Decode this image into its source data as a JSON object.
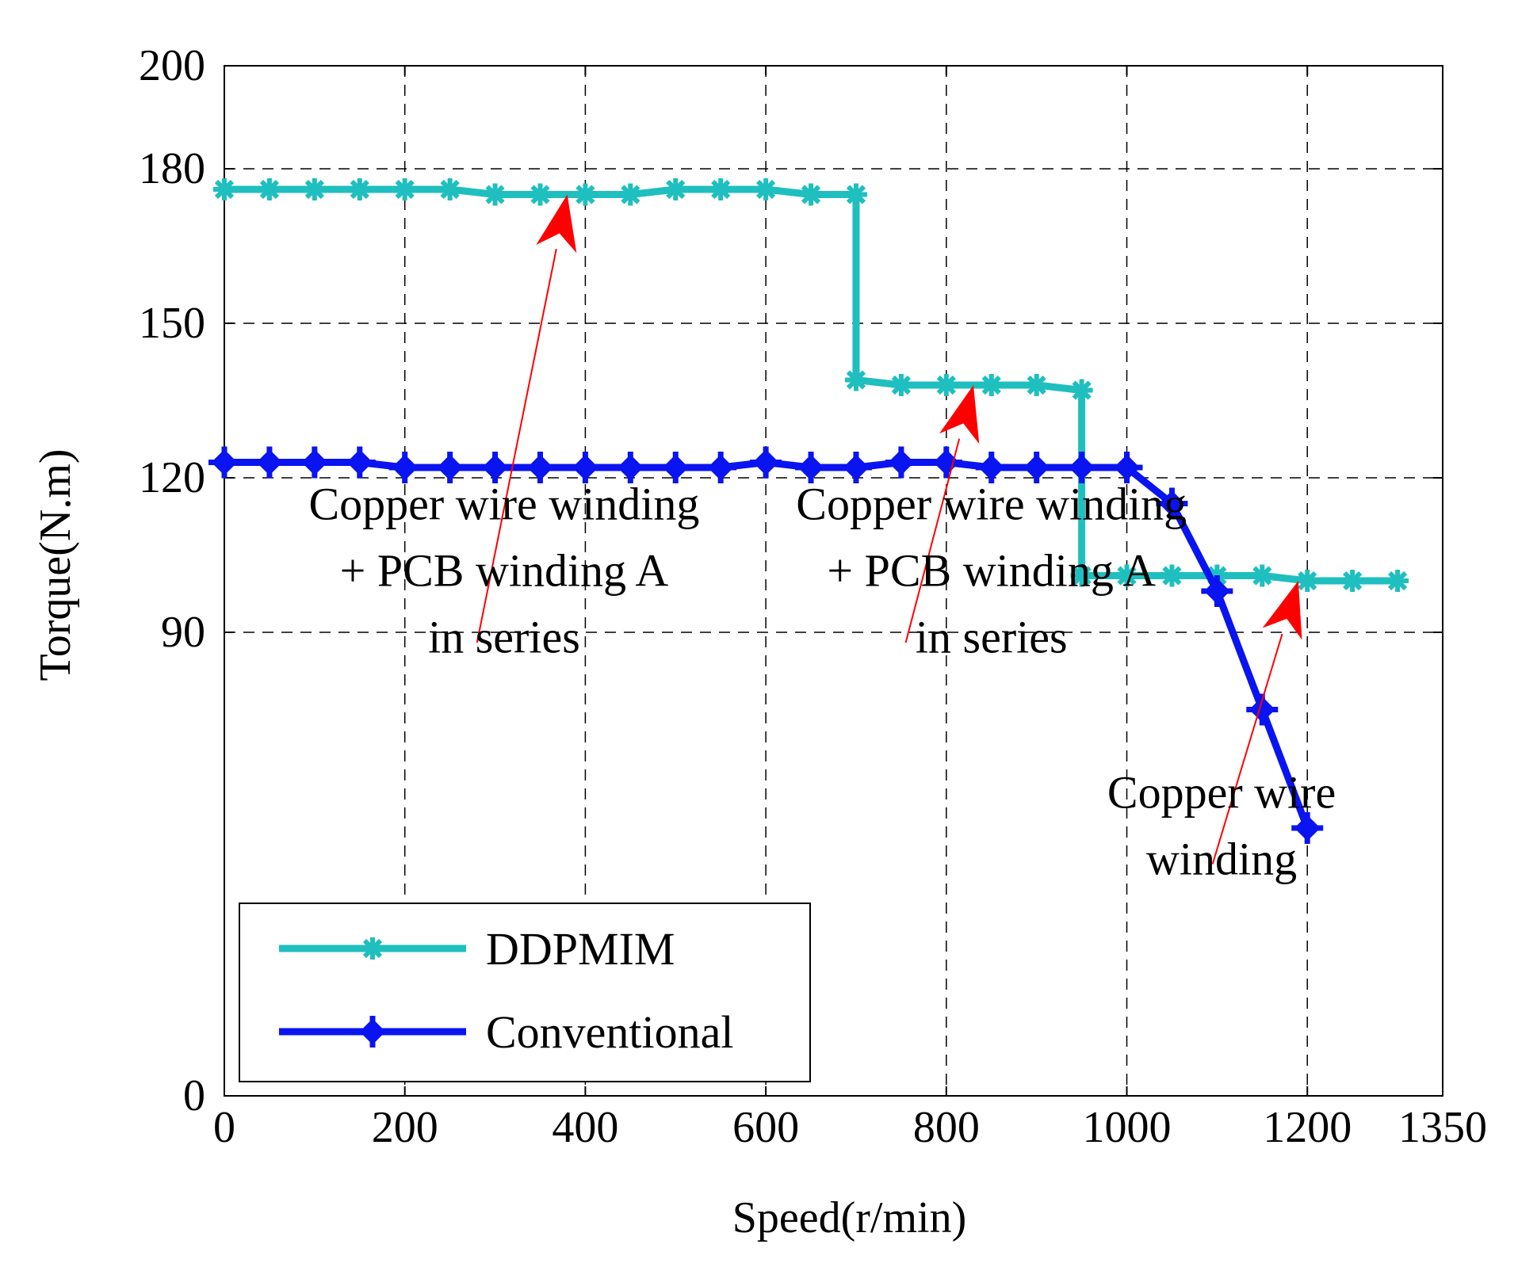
{
  "chart_data": {
    "type": "line",
    "title": "",
    "xlabel": "Speed(r/min)",
    "ylabel": "Torque(N.m)",
    "xlim": [
      0,
      1350
    ],
    "ylim": [
      0,
      200
    ],
    "xticks": [
      0,
      200,
      400,
      600,
      800,
      1000,
      1200,
      1350
    ],
    "xtick_labels": [
      "0",
      "200",
      "400",
      "600",
      "800",
      "1000",
      "1200",
      "1350"
    ],
    "yticks": [
      0,
      90,
      120,
      150,
      180,
      200
    ],
    "ytick_labels": [
      "0",
      "90",
      "120",
      "150",
      "180",
      "200"
    ],
    "grid": true,
    "legend_position": "lower-left",
    "series": [
      {
        "name": "DDPMIM",
        "color": "#1fbfbf",
        "marker": "star",
        "x": [
          0,
          50,
          100,
          150,
          200,
          250,
          300,
          350,
          400,
          450,
          500,
          550,
          600,
          650,
          700,
          700,
          750,
          800,
          850,
          900,
          950,
          950,
          1000,
          1050,
          1100,
          1150,
          1200,
          1250,
          1300
        ],
        "y": [
          176,
          176,
          176,
          176,
          176,
          176,
          175,
          175,
          175,
          175,
          176,
          176,
          176,
          175,
          175,
          139,
          138,
          138,
          138,
          138,
          137,
          101,
          101,
          101,
          101,
          101,
          100,
          100,
          100
        ],
        "markers_mask": [
          1,
          1,
          1,
          1,
          1,
          1,
          1,
          1,
          1,
          1,
          1,
          1,
          1,
          1,
          1,
          1,
          1,
          1,
          1,
          1,
          1,
          1,
          1,
          1,
          1,
          1,
          1,
          1,
          1
        ]
      },
      {
        "name": "Conventional",
        "color": "#0a14f0",
        "marker": "diamond-cross",
        "x": [
          0,
          50,
          100,
          150,
          200,
          250,
          300,
          350,
          400,
          450,
          500,
          550,
          600,
          650,
          700,
          750,
          800,
          850,
          900,
          950,
          1000,
          1050,
          1100,
          1150,
          1200
        ],
        "y": [
          123,
          123,
          123,
          123,
          122,
          122,
          122,
          122,
          122,
          122,
          122,
          122,
          123,
          122,
          122,
          123,
          123,
          122,
          122,
          122,
          122,
          115,
          98,
          75,
          52
        ]
      }
    ],
    "annotations": [
      {
        "lines": [
          "Copper wire winding",
          "+ PCB winding A",
          "in series"
        ],
        "center_x": 310,
        "top_y": 115,
        "arrow_from": [
          280,
          88
        ],
        "arrow_to": [
          380,
          175
        ]
      },
      {
        "lines": [
          "Copper wire winding",
          "+ PCB winding A",
          "in series"
        ],
        "center_x": 850,
        "top_y": 115,
        "arrow_from": [
          755,
          88
        ],
        "arrow_to": [
          830,
          138
        ]
      },
      {
        "lines": [
          "Copper wire",
          "winding"
        ],
        "center_x": 1105,
        "top_y": 59,
        "arrow_from": [
          1095,
          45
        ],
        "arrow_to": [
          1190,
          100
        ]
      }
    ]
  }
}
